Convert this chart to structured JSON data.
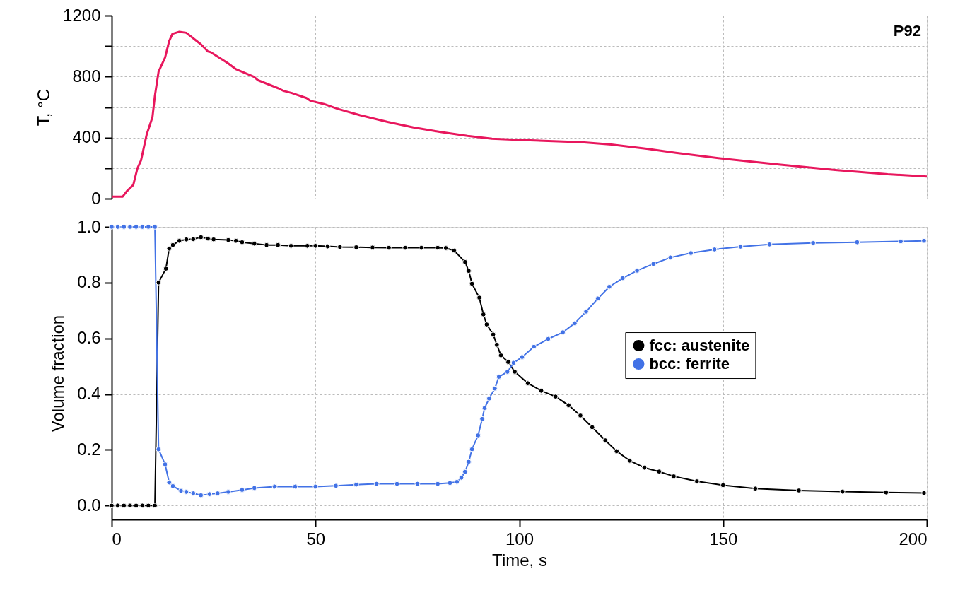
{
  "chart_data": [
    {
      "type": "line",
      "ylabel": "T, °C",
      "xlim": [
        0,
        200
      ],
      "ylim": [
        0,
        1200
      ],
      "xticks": [
        0,
        50,
        100,
        150,
        200
      ],
      "yticks": [
        0,
        {
          "value": 200,
          "label": null
        },
        400,
        {
          "value": 600,
          "label": null
        },
        800,
        {
          "value": 1000,
          "label": null
        },
        1200
      ],
      "tick_labels": "y",
      "grid": true,
      "legend": false,
      "line_style": "solid",
      "marker": "none",
      "annotations": [
        "P92"
      ],
      "series": [
        {
          "color": "#e8175d",
          "x": [
            0,
            2.7,
            3.7,
            5.3,
            6.3,
            7.2,
            8.6,
            10.0,
            10.6,
            11.5,
            13.1,
            14.1,
            14.9,
            16.6,
            18.3,
            21.9,
            23.6,
            24.2,
            28.6,
            30.5,
            34.9,
            35.9,
            40.8,
            42.2,
            44.2,
            47.8,
            48.8,
            52.1,
            55.4,
            60.8,
            67.7,
            74.0,
            80.7,
            87.3,
            93.3,
            100.2,
            115.4,
            122.6,
            131.3,
            138.4,
            150.8,
            163.7,
            177.5,
            190.4,
            200
          ],
          "values": [
            13,
            13,
            48,
            90,
            198,
            251,
            422,
            534,
            674,
            832,
            925,
            1033,
            1080,
            1094,
            1087,
            1011,
            965,
            961,
            886,
            848,
            799,
            776,
            724,
            706,
            692,
            659,
            641,
            620,
            589,
            548,
            503,
            467,
            437,
            411,
            393,
            385,
            369,
            354,
            327,
            300,
            259,
            224,
            188,
            160,
            145
          ]
        }
      ]
    },
    {
      "type": "line",
      "xlabel": "Time, s",
      "ylabel": "Volume fraction",
      "xlim": [
        0,
        200
      ],
      "ylim": [
        -0.05,
        1.0
      ],
      "xticks": [
        0,
        50,
        100,
        150,
        200
      ],
      "yticks": [
        {
          "value": 0,
          "label": "0.0"
        },
        {
          "value": 0.2,
          "label": "0.2"
        },
        {
          "value": 0.4,
          "label": "0.4"
        },
        {
          "value": 0.6,
          "label": "0.6"
        },
        {
          "value": 0.8,
          "label": "0.8"
        },
        {
          "value": 1.0,
          "label": "1.0"
        }
      ],
      "grid": true,
      "legend": "right",
      "line_style": "solid",
      "marker": "circle",
      "series": [
        {
          "name": "fcc: austenite",
          "color": "#000000",
          "x": [
            0,
            1.5,
            3,
            4.5,
            6,
            7.5,
            9,
            10.6,
            11.5,
            13.3,
            14.1,
            15,
            16.6,
            18.3,
            20,
            21.9,
            23.6,
            25,
            28.6,
            30.5,
            32,
            35,
            38,
            40.8,
            44,
            48,
            50,
            53,
            56,
            60,
            64,
            68,
            72,
            76,
            80,
            82,
            84,
            86.7,
            87.6,
            88.4,
            90.2,
            91.2,
            92,
            93.6,
            94.5,
            95.5,
            97.3,
            98.9,
            102.1,
            105.4,
            108.9,
            112.1,
            115,
            117.9,
            121.1,
            123.9,
            127.1,
            130.7,
            134.3,
            137.9,
            143.6,
            150,
            157.9,
            168.6,
            179.3,
            190,
            199.3
          ],
          "values": [
            0,
            0,
            0,
            0,
            0,
            0,
            0,
            0,
            0.8,
            0.85,
            0.922,
            0.935,
            0.95,
            0.955,
            0.956,
            0.963,
            0.958,
            0.955,
            0.953,
            0.95,
            0.945,
            0.94,
            0.935,
            0.935,
            0.932,
            0.932,
            0.932,
            0.93,
            0.928,
            0.927,
            0.926,
            0.925,
            0.925,
            0.925,
            0.925,
            0.924,
            0.915,
            0.874,
            0.842,
            0.796,
            0.746,
            0.686,
            0.65,
            0.614,
            0.577,
            0.539,
            0.515,
            0.48,
            0.439,
            0.412,
            0.391,
            0.36,
            0.323,
            0.281,
            0.234,
            0.195,
            0.161,
            0.136,
            0.122,
            0.105,
            0.087,
            0.073,
            0.061,
            0.054,
            0.05,
            0.047,
            0.045
          ]
        },
        {
          "name": "bcc: ferrite",
          "color": "#4272e6",
          "x": [
            0,
            1.5,
            3,
            4.5,
            6,
            7.5,
            9,
            10.6,
            11.5,
            13.1,
            14.1,
            15,
            17,
            18.3,
            20,
            21.9,
            24,
            26,
            28.6,
            32,
            35,
            40,
            45,
            50,
            55,
            60,
            65,
            70,
            75,
            80,
            83,
            84.7,
            85.8,
            86.7,
            87.6,
            88.4,
            89.9,
            90.9,
            91.5,
            92.6,
            94,
            95,
            97.1,
            98.6,
            100.7,
            103.6,
            107.1,
            110.7,
            113.6,
            116.4,
            119.3,
            122.1,
            125.4,
            128.9,
            132.9,
            137.1,
            142.1,
            147.9,
            154.3,
            161.4,
            172.1,
            182.9,
            193.6,
            199.3
          ],
          "values": [
            1,
            1,
            1,
            1,
            1,
            1,
            1,
            1,
            0.202,
            0.148,
            0.083,
            0.07,
            0.053,
            0.049,
            0.044,
            0.037,
            0.041,
            0.044,
            0.049,
            0.056,
            0.063,
            0.068,
            0.068,
            0.068,
            0.071,
            0.075,
            0.078,
            0.078,
            0.078,
            0.078,
            0.081,
            0.085,
            0.1,
            0.121,
            0.157,
            0.202,
            0.252,
            0.311,
            0.35,
            0.384,
            0.42,
            0.462,
            0.48,
            0.512,
            0.533,
            0.57,
            0.598,
            0.622,
            0.654,
            0.696,
            0.743,
            0.785,
            0.816,
            0.843,
            0.867,
            0.89,
            0.906,
            0.919,
            0.929,
            0.937,
            0.942,
            0.945,
            0.948,
            0.95
          ]
        }
      ]
    }
  ]
}
